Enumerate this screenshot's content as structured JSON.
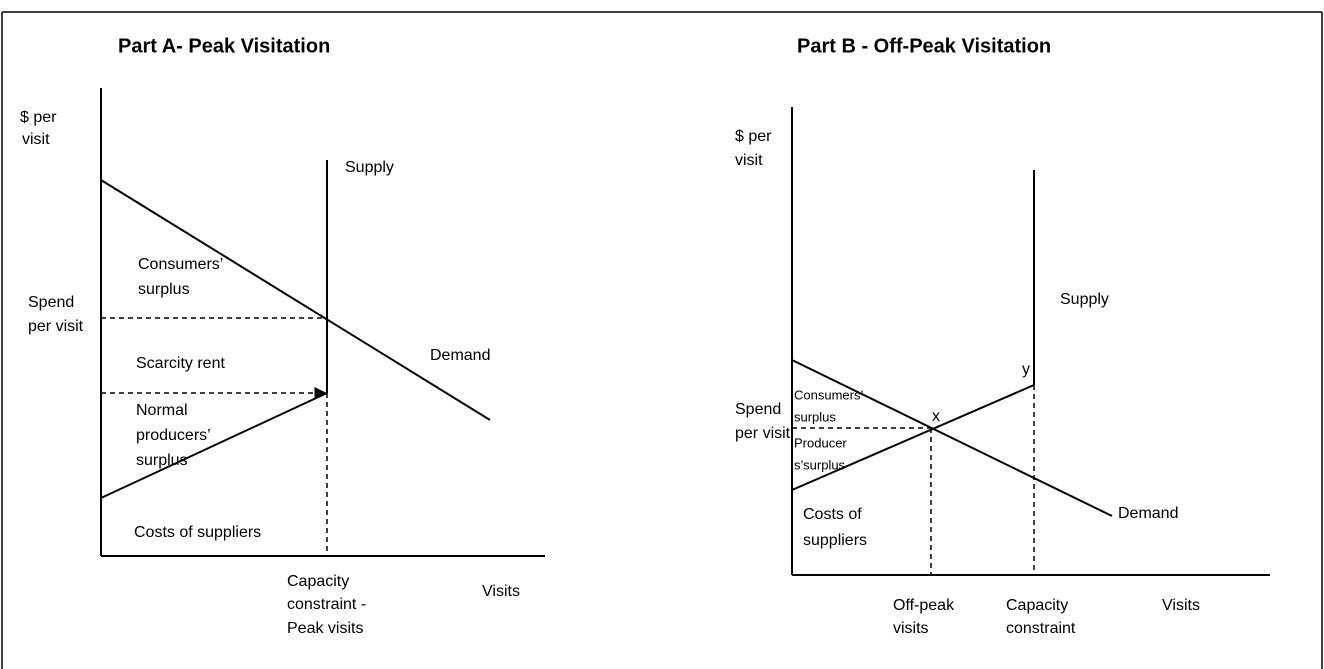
{
  "part_a": {
    "title": "Part A- Peak Visitation",
    "y_axis_label": [
      "$ per",
      "visit"
    ],
    "supply_label": "Supply",
    "demand_label": "Demand",
    "spend_label": [
      "Spend",
      "per visit"
    ],
    "consumers_surplus": [
      "Consumers’",
      "surplus"
    ],
    "scarcity_rent": "Scarcity rent",
    "producers_surplus": [
      "Normal",
      "producers’",
      "surplus"
    ],
    "costs": "Costs of suppliers",
    "capacity_label": [
      "Capacity",
      "constraint -",
      "Peak visits"
    ],
    "x_axis_label": "Visits"
  },
  "part_b": {
    "title": "Part B - Off-Peak Visitation",
    "y_axis_label": [
      "$ per",
      "visit"
    ],
    "supply_label": "Supply",
    "demand_label": "Demand",
    "point_y": "y",
    "point_x": "x",
    "spend_label": [
      "Spend",
      "per visit"
    ],
    "consumers_surplus": [
      "Consumers’",
      "surplus"
    ],
    "producers_surplus": [
      "Producer",
      "s’surplus"
    ],
    "costs": [
      "Costs of",
      "suppliers"
    ],
    "off_peak_label": [
      "Off-peak",
      "visits"
    ],
    "capacity_label": [
      "Capacity",
      "constraint"
    ],
    "x_axis_label": "Visits"
  }
}
